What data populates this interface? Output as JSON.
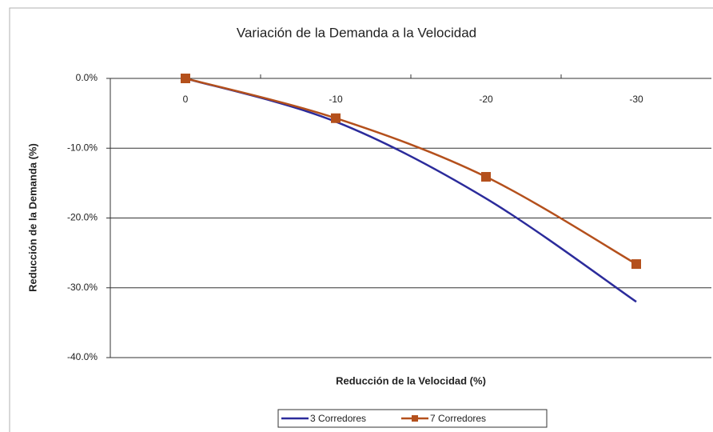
{
  "chart_data": {
    "type": "line",
    "title": "Variación de la Demanda a la Velocidad",
    "x_label": "Reducción de la Velocidad (%)",
    "y_label": "Reducción de la Demanda (%)",
    "categories": [
      "0",
      "-10",
      "-20",
      "-30"
    ],
    "series": [
      {
        "name": "3 Corredores",
        "color": "#2b2b9b",
        "marker": "none",
        "values": [
          0,
          -6.2,
          -17.2,
          -32
        ]
      },
      {
        "name": "7 Corredores",
        "color": "#b4501c",
        "marker": "square",
        "values": [
          0,
          -5.7,
          -14.1,
          -26.6
        ]
      }
    ],
    "ylim": [
      -40,
      0
    ],
    "yticks": [
      {
        "value": -40,
        "label": "-40.0%"
      },
      {
        "value": -30,
        "label": "-30.0%"
      },
      {
        "value": -20,
        "label": "-20.0%"
      },
      {
        "value": -10,
        "label": "-10.0%"
      },
      {
        "value": 0,
        "label": "0.0%"
      }
    ],
    "grid": true,
    "smooth": true,
    "legend": "bottom"
  }
}
